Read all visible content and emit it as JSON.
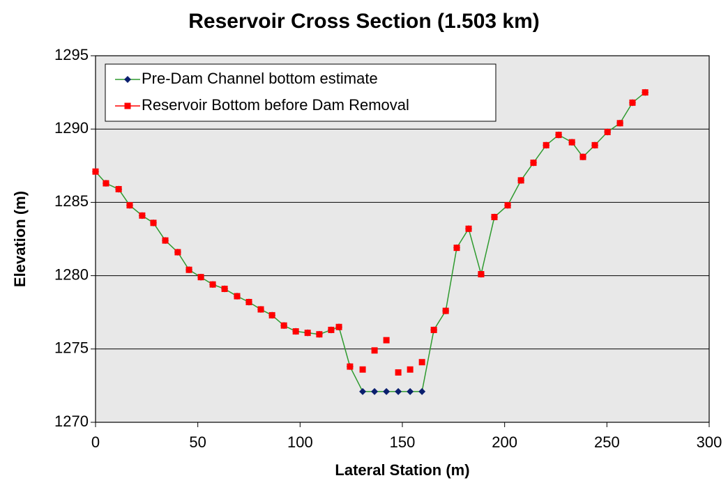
{
  "chart_data": {
    "type": "line",
    "title": "Reservoir Cross Section (1.503 km)",
    "xlabel": "Lateral Station (m)",
    "ylabel": "Elevation (m)",
    "x": [
      0,
      5.1,
      11.3,
      16.7,
      22.8,
      28.3,
      34.1,
      40.2,
      45.7,
      51.5,
      57.3,
      63.1,
      69.2,
      75.0,
      80.8,
      86.3,
      92.1,
      97.9,
      103.7,
      109.4,
      115.2,
      119.0,
      124.4,
      130.6,
      136.4,
      142.2,
      148.0,
      153.8,
      159.6,
      165.4,
      171.2,
      176.6,
      182.4,
      188.5,
      195.0,
      201.5,
      208.0,
      214.1,
      220.3,
      226.4,
      232.9,
      238.3,
      244.1,
      250.3,
      256.4,
      262.5,
      268.7
    ],
    "series": [
      {
        "name": "Pre-Dam Channel bottom estimate",
        "color": "#2e9a2e",
        "marker_color": "#0a1f6e",
        "marker": "diamond",
        "line": true,
        "values": [
          1287.1,
          1286.3,
          1285.9,
          1284.8,
          1284.1,
          1283.6,
          1282.4,
          1281.6,
          1280.4,
          1279.9,
          1279.4,
          1279.1,
          1278.6,
          1278.2,
          1277.7,
          1277.3,
          1276.6,
          1276.2,
          1276.1,
          1276.0,
          1276.3,
          1276.5,
          1273.8,
          1272.1,
          1272.1,
          1272.1,
          1272.1,
          1272.1,
          1272.1,
          1276.3,
          1277.6,
          1281.9,
          1283.2,
          1280.1,
          1284.0,
          1284.8,
          1286.5,
          1287.7,
          1288.9,
          1289.6,
          1289.1,
          1288.1,
          1288.9,
          1289.8,
          1290.4,
          1291.8,
          1292.5
        ]
      },
      {
        "name": "Reservoir Bottom before Dam Removal",
        "color": "#ff0000",
        "marker_color": "#ff0000",
        "marker": "square",
        "line": false,
        "values": [
          1287.1,
          1286.3,
          1285.9,
          1284.8,
          1284.1,
          1283.6,
          1282.4,
          1281.6,
          1280.4,
          1279.9,
          1279.4,
          1279.1,
          1278.6,
          1278.2,
          1277.7,
          1277.3,
          1276.6,
          1276.2,
          1276.1,
          1276.0,
          1276.3,
          1276.5,
          1273.8,
          1273.6,
          1274.9,
          1275.6,
          1273.4,
          1273.6,
          1274.1,
          1276.3,
          1277.6,
          1281.9,
          1283.2,
          1280.1,
          1284.0,
          1284.8,
          1286.5,
          1287.7,
          1288.9,
          1289.6,
          1289.1,
          1288.1,
          1288.9,
          1289.8,
          1290.4,
          1291.8,
          1292.5
        ]
      }
    ],
    "xlim": [
      0,
      300
    ],
    "xticks": [
      0,
      50,
      100,
      150,
      200,
      250,
      300
    ],
    "ylim": [
      1270,
      1295
    ],
    "yticks": [
      1270,
      1275,
      1280,
      1285,
      1290,
      1295
    ],
    "grid": true,
    "legend": "upper left"
  }
}
